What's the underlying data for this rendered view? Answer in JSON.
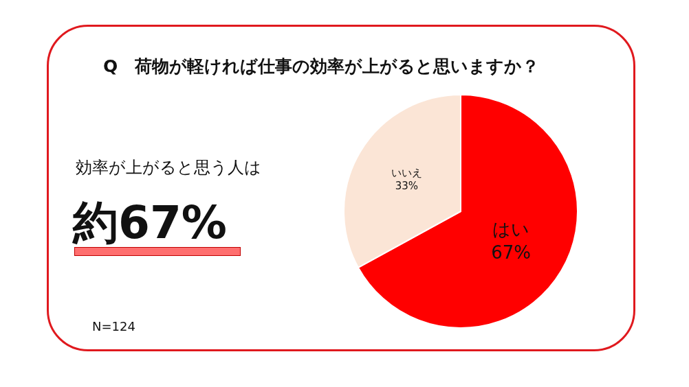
{
  "chart_data": {
    "type": "pie",
    "title": "Q　荷物が軽ければ仕事の効率が上がると思いますか？",
    "categories": [
      "はい",
      "いいえ"
    ],
    "values": [
      67,
      33
    ],
    "value_labels": [
      "67%",
      "33%"
    ],
    "colors": [
      "#ff0000",
      "#fbe5d6"
    ],
    "annotations": [
      "効率が上がると思う人は",
      "約67%",
      "N=124"
    ],
    "legend": false
  }
}
